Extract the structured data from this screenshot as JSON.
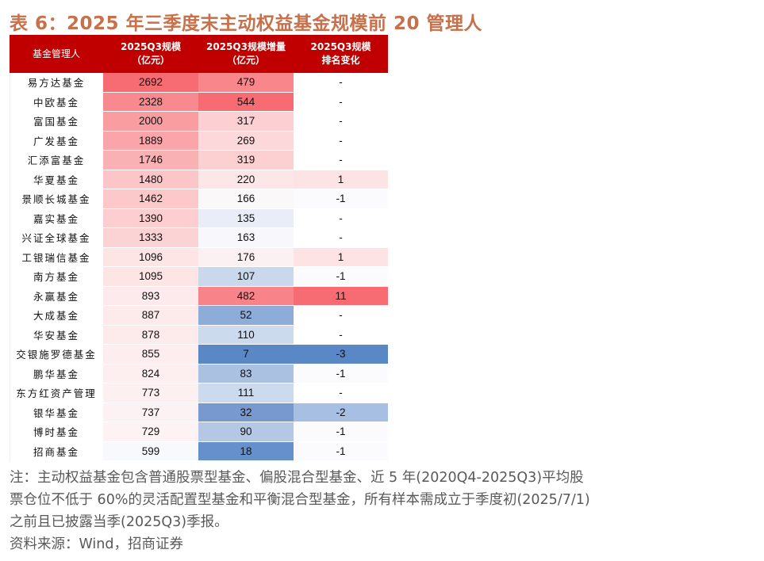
{
  "title": "表 6：2025 年三季度末主动权益基金规模前 20 管理人",
  "table": {
    "headers": [
      {
        "line1": "基金管理人",
        "line2": ""
      },
      {
        "line1": "2025Q3规模",
        "line2": "（亿元）"
      },
      {
        "line1": "2025Q3规模增量",
        "line2": "（亿元）"
      },
      {
        "line1": "2025Q3规模",
        "line2": "排名变化"
      }
    ],
    "header_color": "#c00000",
    "rows": [
      {
        "name": "易方达基金",
        "scale": "2692",
        "scale_color": "#f76c72",
        "inc": "479",
        "inc_color": "#f8868b",
        "rank": "-",
        "rank_color": "#ffffff"
      },
      {
        "name": "中欧基金",
        "scale": "2328",
        "scale_color": "#f88a8f",
        "inc": "544",
        "inc_color": "#f76c72",
        "rank": "-",
        "rank_color": "#ffffff"
      },
      {
        "name": "富国基金",
        "scale": "2000",
        "scale_color": "#f99da1",
        "inc": "317",
        "inc_color": "#fcd0d2",
        "rank": "-",
        "rank_color": "#ffffff"
      },
      {
        "name": "广发基金",
        "scale": "1889",
        "scale_color": "#f9a5a9",
        "inc": "269",
        "inc_color": "#fcd8da",
        "rank": "-",
        "rank_color": "#ffffff"
      },
      {
        "name": "汇添富基金",
        "scale": "1746",
        "scale_color": "#fab1b4",
        "inc": "319",
        "inc_color": "#fccfd1",
        "rank": "-",
        "rank_color": "#ffffff"
      },
      {
        "name": "华夏基金",
        "scale": "1480",
        "scale_color": "#fcc6c9",
        "inc": "220",
        "inc_color": "#fde6e7",
        "rank": "1",
        "rank_color": "#fde3e4"
      },
      {
        "name": "景顺长城基金",
        "scale": "1462",
        "scale_color": "#fcc8ca",
        "inc": "166",
        "inc_color": "#fbf8fa",
        "rank": "-1",
        "rank_color": "#fbfbfe"
      },
      {
        "name": "嘉实基金",
        "scale": "1390",
        "scale_color": "#fcced0",
        "inc": "135",
        "inc_color": "#e8edf7",
        "rank": "-",
        "rank_color": "#ffffff"
      },
      {
        "name": "兴证全球基金",
        "scale": "1333",
        "scale_color": "#fcd3d5",
        "inc": "163",
        "inc_color": "#f8f7fb",
        "rank": "-",
        "rank_color": "#ffffff"
      },
      {
        "name": "工银瑞信基金",
        "scale": "1096",
        "scale_color": "#fde4e5",
        "inc": "176",
        "inc_color": "#fcf1f2",
        "rank": "1",
        "rank_color": "#fde3e4"
      },
      {
        "name": "南方基金",
        "scale": "1095",
        "scale_color": "#fde4e5",
        "inc": "107",
        "inc_color": "#cad8ec",
        "rank": "-1",
        "rank_color": "#fbfbfe"
      },
      {
        "name": "永赢基金",
        "scale": "893",
        "scale_color": "#fdeaec",
        "inc": "482",
        "inc_color": "#f8848a",
        "rank": "11",
        "rank_color": "#f76c72"
      },
      {
        "name": "大成基金",
        "scale": "887",
        "scale_color": "#fdebec",
        "inc": "52",
        "inc_color": "#8eacd8",
        "rank": "-",
        "rank_color": "#ffffff"
      },
      {
        "name": "华安基金",
        "scale": "878",
        "scale_color": "#fdebec",
        "inc": "110",
        "inc_color": "#ccdaee",
        "rank": "-",
        "rank_color": "#ffffff"
      },
      {
        "name": "交银施罗德基金",
        "scale": "855",
        "scale_color": "#fdedee",
        "inc": "7",
        "inc_color": "#5a87c6",
        "rank": "-3",
        "rank_color": "#5a87c6"
      },
      {
        "name": "鹏华基金",
        "scale": "824",
        "scale_color": "#fdeeef",
        "inc": "83",
        "inc_color": "#aac1e2",
        "rank": "-1",
        "rank_color": "#fbfbfe"
      },
      {
        "name": "东方红资产管理",
        "scale": "773",
        "scale_color": "#fdf0f1",
        "inc": "111",
        "inc_color": "#ccdaee",
        "rank": "-",
        "rank_color": "#ffffff"
      },
      {
        "name": "银华基金",
        "scale": "737",
        "scale_color": "#fdf2f3",
        "inc": "32",
        "inc_color": "#7799d0",
        "rank": "-2",
        "rank_color": "#a7bfe2"
      },
      {
        "name": "博时基金",
        "scale": "729",
        "scale_color": "#fdf3f4",
        "inc": "90",
        "inc_color": "#b4c8e6",
        "rank": "-1",
        "rank_color": "#fbfbfe"
      },
      {
        "name": "招商基金",
        "scale": "599",
        "scale_color": "#f8f9fc",
        "inc": "18",
        "inc_color": "#6690cb",
        "rank": "-1",
        "rank_color": "#fbfbfe"
      }
    ]
  },
  "note": {
    "lines": [
      "注：主动权益基金包含普通股票型基金、偏股混合型基金、近 5 年(2020Q4-2025Q3)平均股",
      "票仓位不低于 60%的灵活配置型基金和平衡混合型基金，所有样本需成立于季度初(2025/7/1)",
      "之前且已披露当季(2025Q3)季报。"
    ],
    "source": "资料来源：Wind，招商证券"
  }
}
